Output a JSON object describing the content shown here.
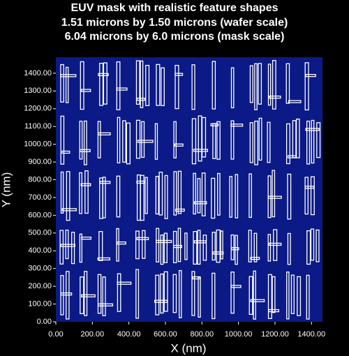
{
  "chart_data": {
    "type": "mask",
    "title": [
      "EUV mask with realistic feature shapes",
      "1.51 microns by 1.50 microns (wafer scale)",
      "6.04 microns by 6.0 microns (mask scale)"
    ],
    "xlabel": "X (nm)",
    "ylabel": "Y (nm)",
    "background": "#000000",
    "plot_color": "#0b1a86",
    "feature_color": "#ffffff",
    "xlim": [
      0,
      1460
    ],
    "ylim": [
      0,
      1490
    ],
    "xticks": [
      {
        "value": 0,
        "label": "0.00"
      },
      {
        "value": 200,
        "label": "200.00"
      },
      {
        "value": 400,
        "label": "400.00"
      },
      {
        "value": 600,
        "label": "600.00"
      },
      {
        "value": 800,
        "label": "800.00"
      },
      {
        "value": 1000,
        "label": "1000.00"
      },
      {
        "value": 1200,
        "label": "1200.00"
      },
      {
        "value": 1400,
        "label": "1400.00"
      }
    ],
    "yticks": [
      {
        "value": 0,
        "label": "0.00"
      },
      {
        "value": 100,
        "label": "100.00"
      },
      {
        "value": 200,
        "label": "200.00"
      },
      {
        "value": 300,
        "label": "300.00"
      },
      {
        "value": 400,
        "label": "400.00"
      },
      {
        "value": 500,
        "label": "500.00"
      },
      {
        "value": 600,
        "label": "600.00"
      },
      {
        "value": 700,
        "label": "700.00"
      },
      {
        "value": 800,
        "label": "800.00"
      },
      {
        "value": 900,
        "label": "900.00"
      },
      {
        "value": 1000,
        "label": "1000.00"
      },
      {
        "value": 1100,
        "label": "1100.00"
      },
      {
        "value": 1200,
        "label": "1200.00"
      },
      {
        "value": 1300,
        "label": "1300.00"
      },
      {
        "value": 1400,
        "label": "1400.00"
      }
    ]
  }
}
